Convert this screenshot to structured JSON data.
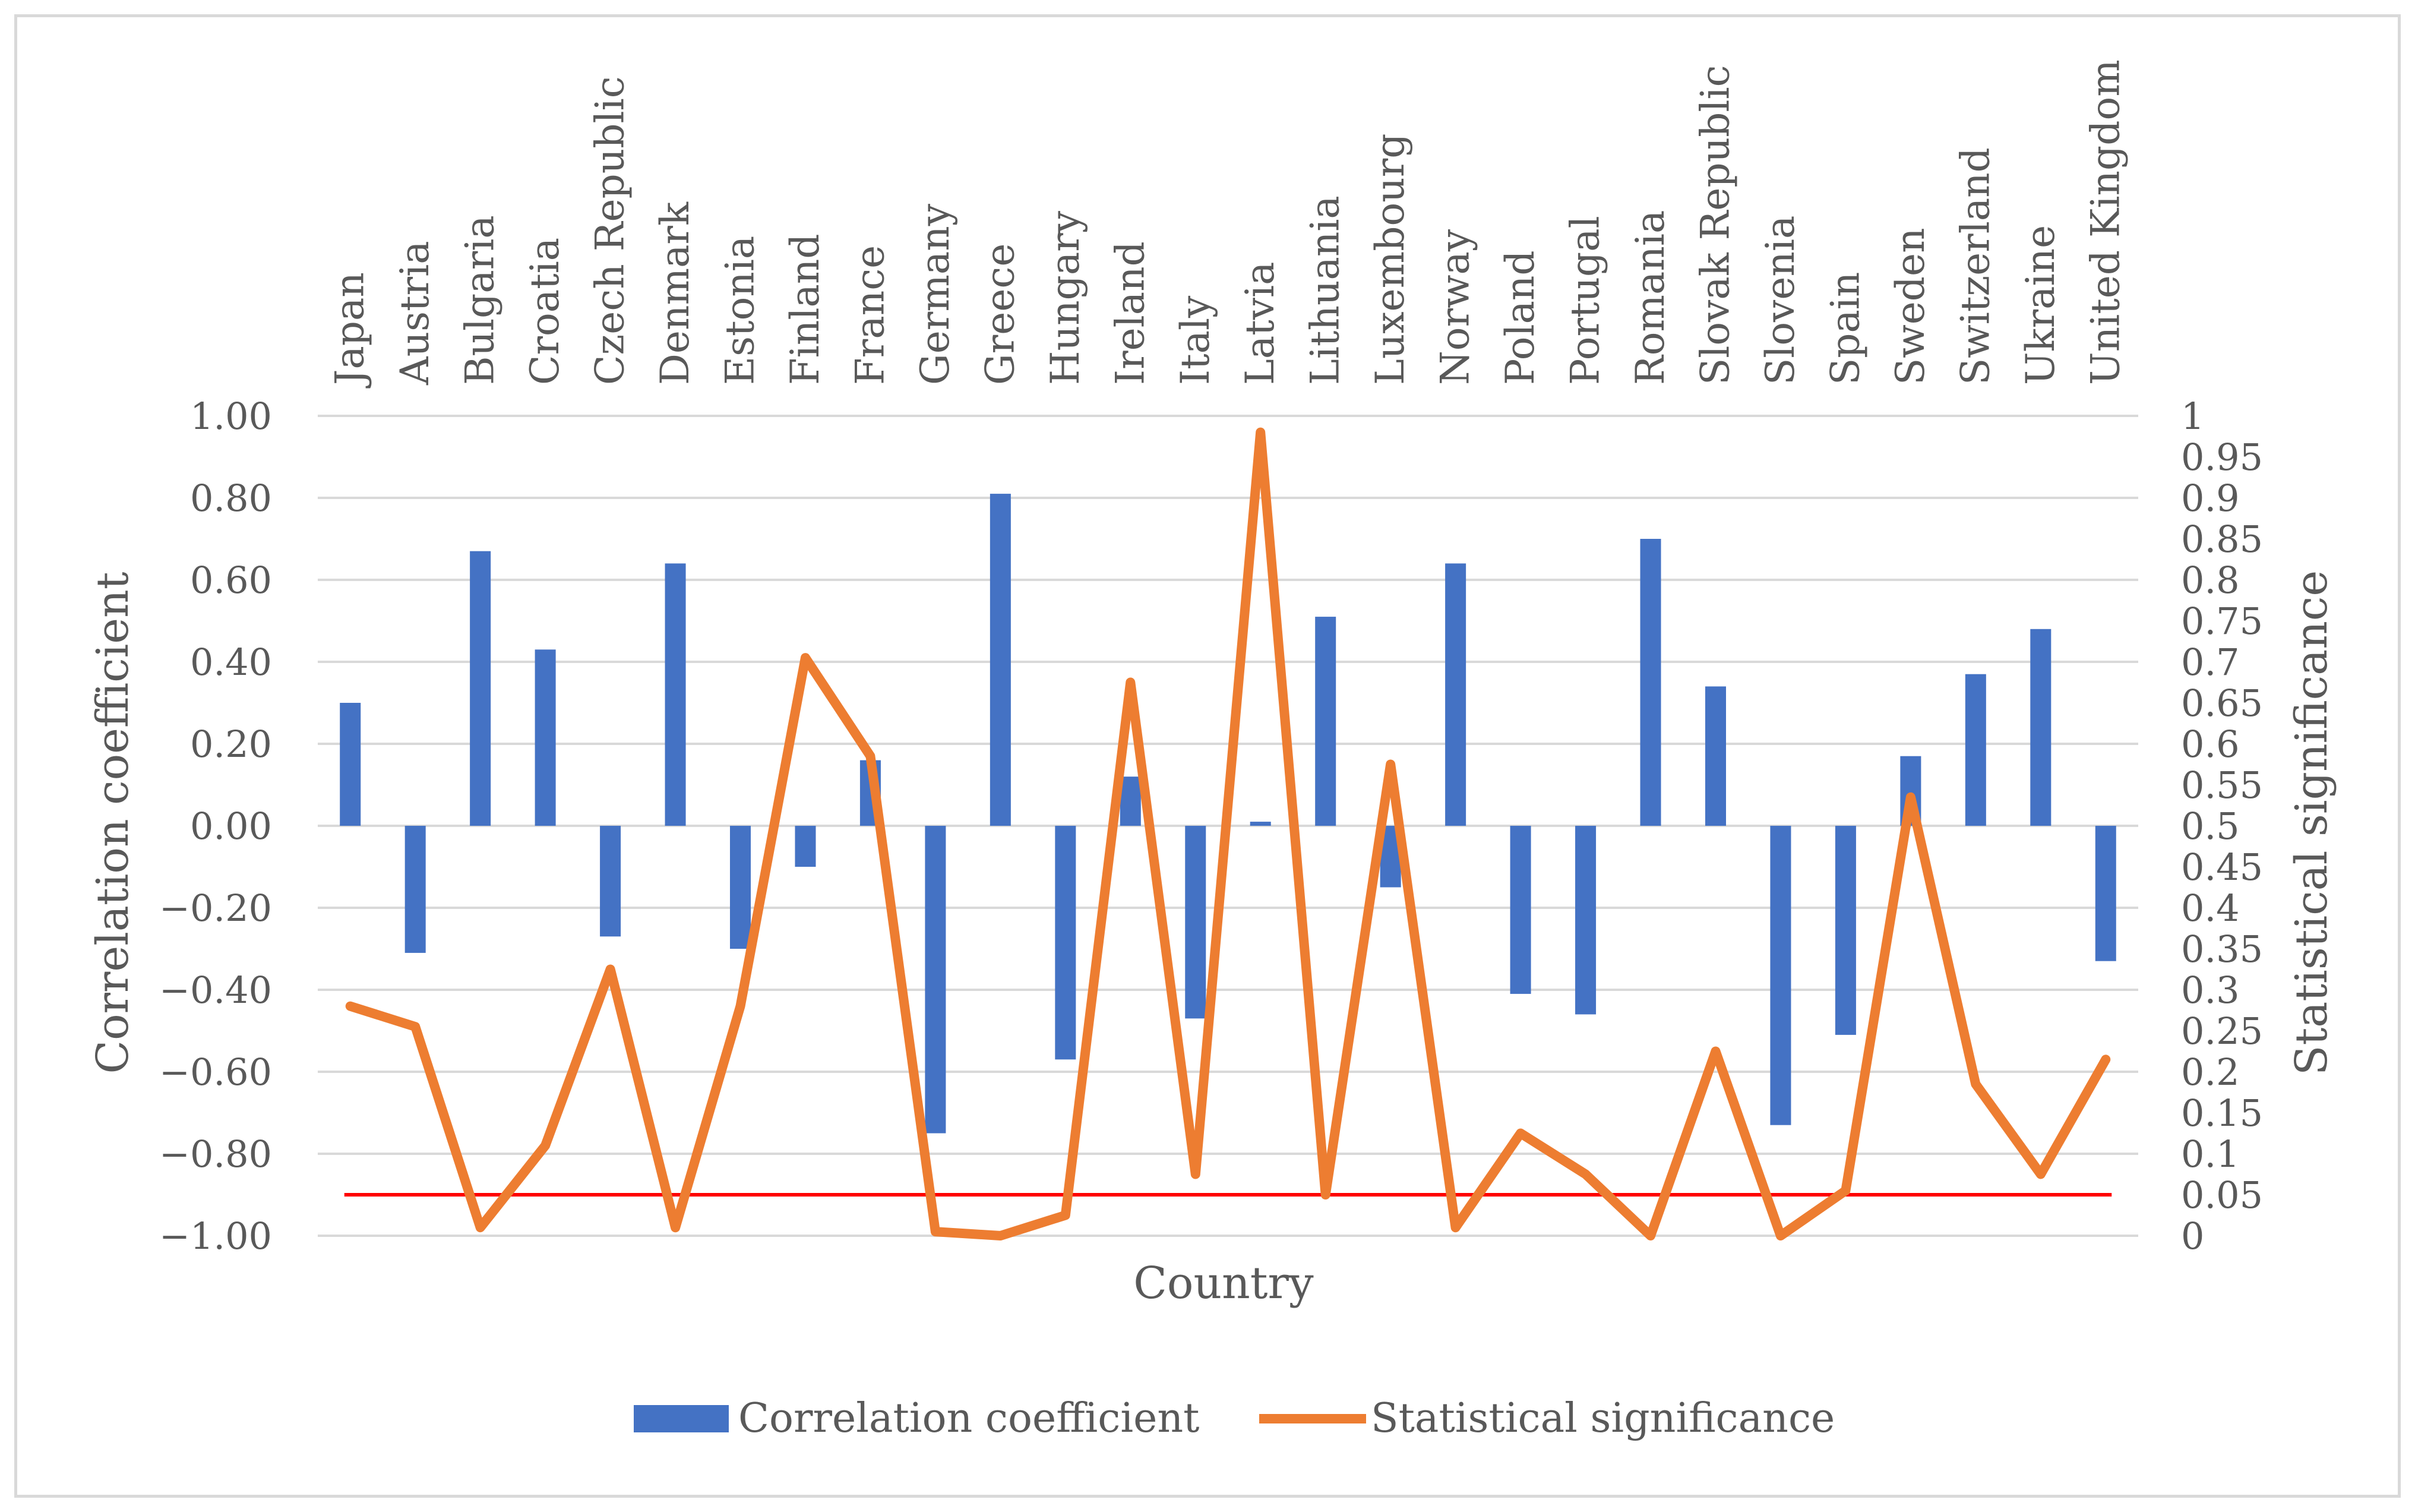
{
  "chart_data": {
    "type": "bar+line",
    "title": "",
    "xlabel": "Country",
    "ylabel": "Correlation coefficient",
    "y2label": "Statistical significance",
    "ylim": [
      -1.0,
      1.0
    ],
    "y2lim": [
      0,
      1
    ],
    "categories": [
      "Japan",
      "Austria",
      "Bulgaria",
      "Croatia",
      "Czech Republic",
      "Denmark",
      "Estonia",
      "Finland",
      "France",
      "Germany",
      "Greece",
      "Hungary",
      "Ireland",
      "Italy",
      "Latvia",
      "Lithuania",
      "Luxembourg",
      "Norway",
      "Poland",
      "Portugal",
      "Romania",
      "Slovak Republic",
      "Slovenia",
      "Spain",
      "Sweden",
      "Switzerland",
      "Ukraine",
      "United Kingdom"
    ],
    "left_ticks": [
      "1.00",
      "0.80",
      "0.60",
      "0.40",
      "0.20",
      "0.00",
      "−0.20",
      "−0.40",
      "−0.60",
      "−0.80",
      "−1.00"
    ],
    "right_ticks": [
      "1",
      "0.95",
      "0.9",
      "0.85",
      "0.8",
      "0.75",
      "0.7",
      "0.65",
      "0.6",
      "0.55",
      "0.5",
      "0.45",
      "0.4",
      "0.35",
      "0.3",
      "0.25",
      "0.2",
      "0.15",
      "0.1",
      "0.05",
      "0"
    ],
    "series": [
      {
        "name": "Correlation coefficient",
        "type": "bar",
        "axis": "left",
        "color": "#4472C4",
        "values": [
          0.3,
          -0.31,
          0.67,
          0.43,
          -0.27,
          0.64,
          -0.3,
          -0.1,
          0.16,
          -0.75,
          0.81,
          -0.57,
          0.12,
          -0.47,
          0.01,
          0.51,
          -0.15,
          0.64,
          -0.41,
          -0.46,
          0.7,
          0.34,
          -0.73,
          -0.51,
          0.17,
          0.37,
          0.48,
          -0.33
        ]
      },
      {
        "name": "Statistical significance",
        "type": "line",
        "axis": "right",
        "color": "#ED7D31",
        "values": [
          0.28,
          0.255,
          0.01,
          0.11,
          0.325,
          0.01,
          0.28,
          0.705,
          0.585,
          0.005,
          0.0,
          0.025,
          0.675,
          0.075,
          0.98,
          0.05,
          0.575,
          0.01,
          0.125,
          0.075,
          0.0,
          0.225,
          0.0,
          0.055,
          0.535,
          0.185,
          0.075,
          0.215
        ]
      }
    ],
    "reference_line": {
      "value": 0.05,
      "axis": "right",
      "color": "#FF0000"
    },
    "grid": true,
    "legend_position": "bottom"
  }
}
